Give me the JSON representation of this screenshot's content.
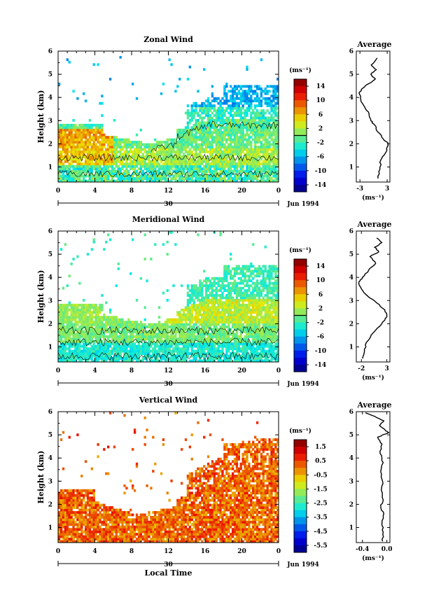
{
  "x_axis": {
    "ticks": [
      "0",
      "4",
      "8",
      "12",
      "16",
      "20",
      "0"
    ],
    "day_label": "30",
    "date_label": "Jun 1994",
    "xlabel": "Local Time"
  },
  "chart_data": [
    {
      "type": "heatmap",
      "title": "Zonal Wind",
      "ylabel": "Height (km)",
      "yticks": [
        "1",
        "2",
        "3",
        "4",
        "5",
        "6"
      ],
      "ylim": [
        0.35,
        6
      ],
      "xlim": [
        0,
        24
      ],
      "colorbar": {
        "unit": "(ms⁻¹)",
        "ticks": [
          "14",
          "10",
          "6",
          "2",
          "-2",
          "-6",
          "-10",
          "-14"
        ],
        "range": [
          -16,
          16
        ],
        "marker": 0
      },
      "profile": {
        "title": "Average",
        "unit": "(ms⁻¹)",
        "xticks": [
          "-3",
          "3"
        ],
        "xlim": [
          -3.8,
          3.6
        ],
        "heights": [
          0.5,
          0.9,
          1.3,
          1.6,
          1.85,
          2.0,
          2.2,
          2.5,
          2.8,
          3.0,
          3.3,
          3.6,
          3.9,
          4.2,
          4.4,
          4.6,
          4.8,
          5.0,
          5.2,
          5.4,
          5.7
        ],
        "values": [
          1.0,
          1.4,
          1.6,
          2.6,
          3.0,
          3.2,
          2.2,
          1.0,
          0.3,
          -0.6,
          -1.0,
          -2.0,
          -2.8,
          -3.2,
          -2.4,
          -1.0,
          0.4,
          -0.6,
          0.6,
          -0.5,
          0.8
        ]
      }
    },
    {
      "type": "heatmap",
      "title": "Meridional Wind",
      "ylabel": "Height (km)",
      "yticks": [
        "1",
        "2",
        "3",
        "4",
        "5",
        "6"
      ],
      "ylim": [
        0.35,
        6
      ],
      "xlim": [
        0,
        24
      ],
      "colorbar": {
        "unit": "(ms⁻¹)",
        "ticks": [
          "14",
          "10",
          "6",
          "2",
          "-2",
          "-6",
          "-10",
          "-14"
        ],
        "range": [
          -16,
          16
        ],
        "marker": 0
      },
      "profile": {
        "title": "Average",
        "unit": "(ms⁻¹)",
        "xticks": [
          "-2",
          "3"
        ],
        "xlim": [
          -3.0,
          3.6
        ],
        "heights": [
          0.5,
          0.8,
          1.2,
          1.6,
          2.0,
          2.3,
          2.6,
          2.9,
          3.2,
          3.5,
          3.8,
          4.0,
          4.3,
          4.6,
          4.9,
          5.1,
          5.3,
          5.5,
          5.7
        ],
        "values": [
          -1.8,
          -1.4,
          -1.0,
          0.3,
          2.0,
          3.0,
          2.6,
          1.0,
          -0.8,
          -2.0,
          -2.5,
          -1.8,
          -0.6,
          0.8,
          -0.3,
          1.4,
          0.6,
          2.0,
          1.0
        ]
      }
    },
    {
      "type": "heatmap",
      "title": "Vertical Wind",
      "ylabel": "Height (km)",
      "yticks": [
        "1",
        "2",
        "3",
        "4",
        "5",
        "6"
      ],
      "ylim": [
        0.35,
        6
      ],
      "xlim": [
        0,
        24
      ],
      "colorbar": {
        "unit": "(ms⁻¹)",
        "ticks": [
          "1.5",
          "0.5",
          "-0.5",
          "-1.5",
          "-2.5",
          "-3.5",
          "-4.5",
          "-5.5"
        ],
        "range": [
          -6,
          2
        ],
        "marker": null
      },
      "profile": {
        "title": "Average",
        "unit": "(ms⁻¹)",
        "xticks": [
          "-0.4",
          "0.0"
        ],
        "xlim": [
          -0.5,
          0.05
        ],
        "heights": [
          0.4,
          0.8,
          1.2,
          1.6,
          1.9,
          2.2,
          2.6,
          3.0,
          3.4,
          3.8,
          4.2,
          4.6,
          4.9,
          5.1,
          5.4,
          5.6,
          5.8,
          5.95
        ],
        "values": [
          -0.07,
          -0.06,
          -0.08,
          -0.05,
          -0.1,
          -0.06,
          -0.09,
          -0.07,
          -0.1,
          -0.06,
          -0.11,
          -0.08,
          -0.15,
          0.03,
          -0.12,
          -0.05,
          -0.2,
          -0.35
        ]
      }
    }
  ]
}
